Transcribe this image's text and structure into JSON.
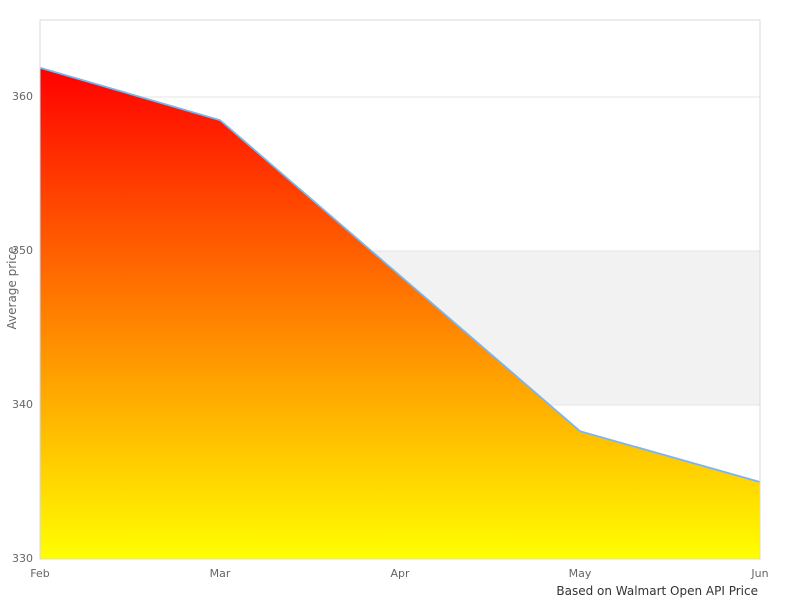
{
  "chart_data": {
    "type": "area",
    "title": "",
    "categories": [
      "Feb",
      "Mar",
      "Apr",
      "May",
      "Jun"
    ],
    "series": [
      {
        "name": "Average price",
        "values": [
          361.9,
          358.5,
          348.4,
          338.3,
          335.0
        ]
      }
    ],
    "xlabel": "",
    "ylabel": "Average price",
    "ylim": [
      330,
      365
    ],
    "yticks": [
      330,
      340,
      350,
      360
    ],
    "grid": true,
    "legend_position": "none",
    "plot_band": {
      "from": 340,
      "to": 350,
      "color": "#f2f2f2"
    },
    "caption": "Based on Walmart Open API Price",
    "colors": {
      "series_line": "#7cb5ec",
      "area_gradient_top": "#ff0000",
      "area_gradient_bottom": "#ffff00",
      "gridline": "#e6e6e6",
      "plot_border": "#d9d9d9",
      "band": "#f2f2f2",
      "tick_label": "#666666",
      "axis_title": "#666666",
      "caption_text": "#333333",
      "background": "#ffffff"
    }
  }
}
